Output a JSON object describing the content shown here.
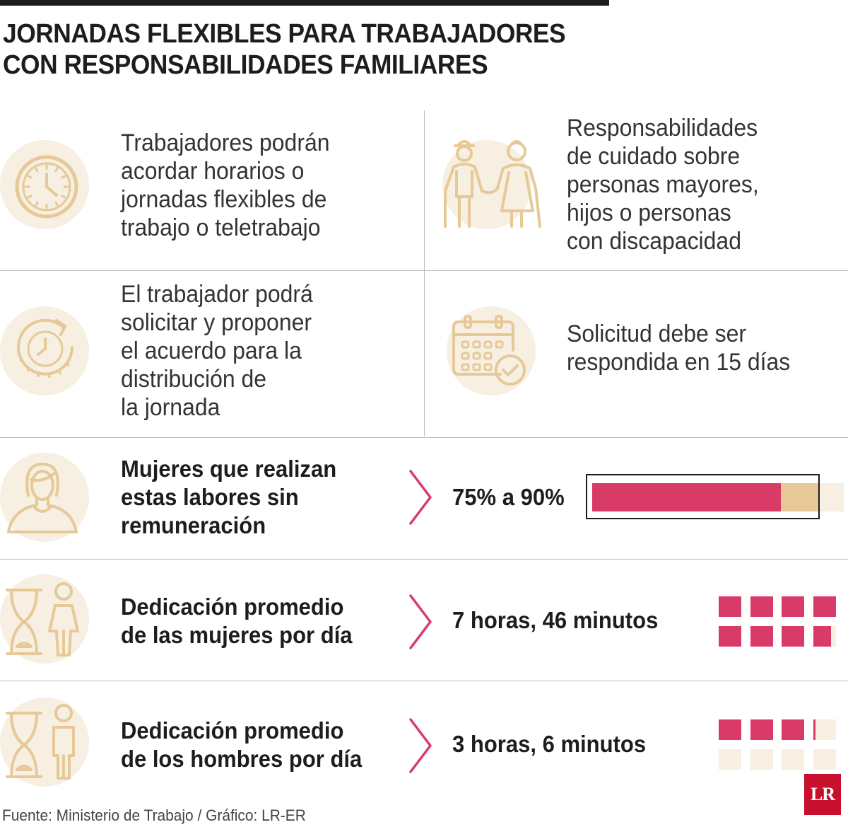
{
  "title": {
    "line1": "JORNADAS FLEXIBLES PARA TRABAJADORES",
    "line2": "CON RESPONSABILIDADES FAMILIARES"
  },
  "grid": [
    {
      "icon": "clock-icon",
      "lines": [
        "Trabajadores podrán",
        "acordar horarios o",
        "jornadas flexibles de",
        "trabajo o teletrabajo"
      ]
    },
    {
      "icon": "elderly-couple-icon",
      "lines": [
        "Responsabilidades",
        "de cuidado sobre",
        "personas mayores,",
        "hijos o personas",
        "con discapacidad"
      ]
    },
    {
      "icon": "clock-refresh-icon",
      "lines": [
        "El trabajador podrá",
        "solicitar y proponer",
        "el acuerdo para la",
        "distribución de",
        "la jornada"
      ]
    },
    {
      "icon": "calendar-check-icon",
      "lines": [
        "Solicitud debe ser",
        "respondida en 15 días"
      ]
    }
  ],
  "stats": [
    {
      "icon": "woman-icon",
      "lines": [
        "Mujeres que realizan",
        "estas labores sin",
        "remuneración"
      ],
      "value": "75% a 90%",
      "range_low_pct": 75,
      "range_high_pct": 90
    },
    {
      "icon": "hourglass-woman-icon",
      "lines": [
        "Dedicación promedio",
        "de las mujeres por día"
      ],
      "value": "7 horas, 46 minutos",
      "hours": 7.77
    },
    {
      "icon": "hourglass-man-icon",
      "lines": [
        "Dedicación promedio",
        "de los hombres por día"
      ],
      "value": "3 horas, 6 minutos",
      "hours": 3.1
    }
  ],
  "source": "Fuente: Ministerio de Trabajo / Gráfico: LR-ER",
  "logo": "LR",
  "colors": {
    "accent": "#d93b68",
    "icon_stroke": "#e6c997",
    "icon_bg": "#f6efe2",
    "text": "#1d1d1b"
  }
}
